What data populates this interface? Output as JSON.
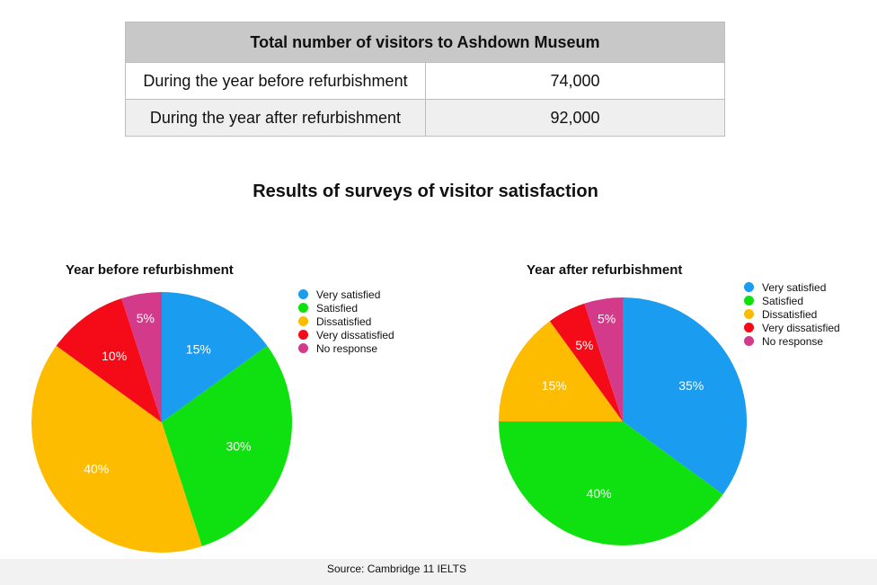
{
  "table": {
    "header": "Total number of visitors to Ashdown Museum",
    "rows": [
      {
        "label": "During the year before refurbishment",
        "value": "74,000"
      },
      {
        "label": "During the year after refurbishment",
        "value": "92,000"
      }
    ]
  },
  "main_title": "Results of surveys of visitor satisfaction",
  "source": "Source: Cambridge 11 IELTS",
  "chart_data": [
    {
      "type": "pie",
      "title": "Year before refurbishment",
      "legend_position": "top-right",
      "slices": [
        {
          "label": "Very satisfied",
          "value": 15,
          "display": "15%",
          "color": "#1a9cf0"
        },
        {
          "label": "Satisfied",
          "value": 30,
          "display": "30%",
          "color": "#0fe00f"
        },
        {
          "label": "Dissatisfied",
          "value": 40,
          "display": "40%",
          "color": "#fdbc00"
        },
        {
          "label": "Very dissatisfied",
          "value": 10,
          "display": "10%",
          "color": "#f50a17"
        },
        {
          "label": "No response",
          "value": 5,
          "display": "5%",
          "color": "#d43a8a"
        }
      ]
    },
    {
      "type": "pie",
      "title": "Year after refurbishment",
      "legend_position": "top-right",
      "slices": [
        {
          "label": "Very satisfied",
          "value": 35,
          "display": "35%",
          "color": "#1a9cf0"
        },
        {
          "label": "Satisfied",
          "value": 40,
          "display": "40%",
          "color": "#0fe00f"
        },
        {
          "label": "Dissatisfied",
          "value": 15,
          "display": "15%",
          "color": "#fdbc00"
        },
        {
          "label": "Very dissatisfied",
          "value": 5,
          "display": "5%",
          "color": "#f50a17"
        },
        {
          "label": "No response",
          "value": 5,
          "display": "5%",
          "color": "#d43a8a"
        }
      ]
    }
  ]
}
